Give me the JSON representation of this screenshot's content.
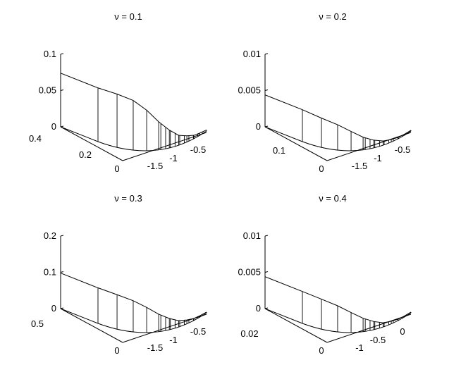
{
  "chart_data": [
    {
      "type": "area",
      "projection": "3d-waterfall",
      "title": "ν = 0.1",
      "z_ticks": [
        "0",
        "0.05",
        "0.1"
      ],
      "z_lim": [
        0,
        0.1
      ],
      "y_ticks": [
        "0",
        "0.2",
        "0.4"
      ],
      "x_ticks": [
        "-1.5",
        "-1",
        "-0.5"
      ],
      "curve": {
        "x": [
          -2.0,
          -1.75,
          -1.5,
          -1.25,
          -1.0,
          -0.75,
          -0.5,
          -0.25
        ],
        "z": [
          0.074,
          0.074,
          0.07,
          0.055,
          0.032,
          0.014,
          0.005,
          0.0015
        ]
      }
    },
    {
      "type": "area",
      "projection": "3d-waterfall",
      "title": "ν = 0.2",
      "z_ticks": [
        "0",
        "0.005",
        "0.01"
      ],
      "z_lim": [
        0,
        0.01
      ],
      "y_ticks": [
        "0",
        "0.1"
      ],
      "x_ticks": [
        "-1.5",
        "-1",
        "-0.5"
      ],
      "curve": {
        "x": [
          -2.0,
          -1.75,
          -1.5,
          -1.25,
          -1.0,
          -0.75,
          -0.5,
          -0.25
        ],
        "z": [
          0.0044,
          0.0041,
          0.0036,
          0.0026,
          0.0014,
          0.0006,
          0.0002,
          0.0001
        ]
      }
    },
    {
      "type": "area",
      "projection": "3d-waterfall",
      "title": "ν = 0.3",
      "z_ticks": [
        "0",
        "0.1",
        "0.2"
      ],
      "z_lim": [
        0,
        0.2
      ],
      "y_ticks": [
        "0",
        "0.5"
      ],
      "x_ticks": [
        "-1.5",
        "-1",
        "-0.5"
      ],
      "curve": {
        "x": [
          -2.0,
          -1.75,
          -1.5,
          -1.25,
          -1.0,
          -0.75,
          -0.5,
          -0.25
        ],
        "z": [
          0.098,
          0.096,
          0.088,
          0.068,
          0.04,
          0.018,
          0.006,
          0.002
        ]
      }
    },
    {
      "type": "area",
      "projection": "3d-waterfall",
      "title": "ν = 0.4",
      "z_ticks": [
        "0",
        "0.005",
        "0.01"
      ],
      "z_lim": [
        0,
        0.01
      ],
      "y_ticks": [
        "0",
        "0.02"
      ],
      "x_ticks": [
        "-1",
        "-0.5",
        "0"
      ],
      "curve": {
        "x": [
          -1.5,
          -1.3,
          -1.1,
          -0.9,
          -0.7,
          -0.5,
          -0.3,
          -0.1
        ],
        "z": [
          0.0044,
          0.0042,
          0.0037,
          0.0027,
          0.0015,
          0.0006,
          0.0002,
          0.0001
        ]
      }
    }
  ]
}
